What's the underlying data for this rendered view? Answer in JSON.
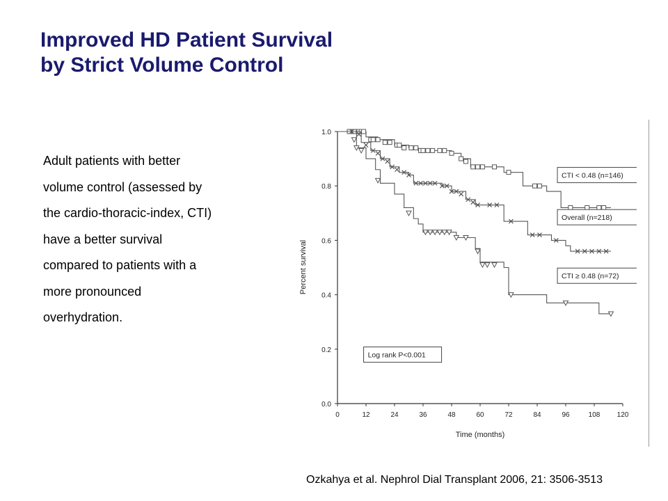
{
  "title": {
    "line1": "Improved HD Patient Survival",
    "line2": "by Strict Volume Control"
  },
  "body_lines": [
    "Adult patients with better",
    "volume control (assessed by",
    "the cardio-thoracic-index, CTI)",
    "have a better survival",
    "compared to patients with a",
    "more pronounced",
    "overhydration."
  ],
  "citation": "Ozkahya et al. Nephrol Dial Transplant 2006, 21: 3506-3513",
  "chart_data": {
    "type": "line",
    "xlabel": "Time (months)",
    "ylabel": "Percent survival",
    "xlim": [
      0,
      120
    ],
    "ylim": [
      0,
      1.0
    ],
    "xticks": [
      0,
      12,
      24,
      36,
      48,
      60,
      72,
      84,
      96,
      108,
      120
    ],
    "yticks": [
      "0.0",
      "0.2",
      "0.4",
      "0.6",
      "0.8",
      "1.0"
    ],
    "grid": false,
    "annotation": "Log rank P<0.001",
    "series": [
      {
        "name": "CTI < 0.48 (n=146)",
        "marker": "square",
        "points": [
          [
            0,
            1.0
          ],
          [
            10,
            1.0
          ],
          [
            12,
            0.98
          ],
          [
            17,
            0.97
          ],
          [
            24,
            0.95
          ],
          [
            30,
            0.94
          ],
          [
            34,
            0.93
          ],
          [
            42,
            0.93
          ],
          [
            48,
            0.92
          ],
          [
            52,
            0.9
          ],
          [
            56,
            0.87
          ],
          [
            66,
            0.87
          ],
          [
            70,
            0.85
          ],
          [
            76,
            0.85
          ],
          [
            78,
            0.8
          ],
          [
            86,
            0.8
          ],
          [
            88,
            0.78
          ],
          [
            92,
            0.78
          ],
          [
            94,
            0.72
          ],
          [
            115,
            0.72
          ]
        ],
        "marks": [
          [
            5,
            1.0
          ],
          [
            7,
            1.0
          ],
          [
            9,
            1.0
          ],
          [
            10,
            1.0
          ],
          [
            11,
            1.0
          ],
          [
            14,
            0.97
          ],
          [
            15,
            0.97
          ],
          [
            17,
            0.97
          ],
          [
            20,
            0.96
          ],
          [
            22,
            0.96
          ],
          [
            25,
            0.95
          ],
          [
            26,
            0.95
          ],
          [
            28,
            0.94
          ],
          [
            31,
            0.94
          ],
          [
            33,
            0.94
          ],
          [
            35,
            0.93
          ],
          [
            36,
            0.93
          ],
          [
            38,
            0.93
          ],
          [
            40,
            0.93
          ],
          [
            43,
            0.93
          ],
          [
            45,
            0.93
          ],
          [
            48,
            0.92
          ],
          [
            52,
            0.9
          ],
          [
            54,
            0.89
          ],
          [
            57,
            0.87
          ],
          [
            59,
            0.87
          ],
          [
            61,
            0.87
          ],
          [
            66,
            0.87
          ],
          [
            72,
            0.85
          ],
          [
            83,
            0.8
          ],
          [
            85,
            0.8
          ],
          [
            98,
            0.72
          ],
          [
            105,
            0.72
          ],
          [
            110,
            0.72
          ],
          [
            112,
            0.72
          ]
        ]
      },
      {
        "name": "Overall (n=218)",
        "marker": "x",
        "points": [
          [
            0,
            1.0
          ],
          [
            8,
            1.0
          ],
          [
            10,
            0.96
          ],
          [
            14,
            0.93
          ],
          [
            18,
            0.9
          ],
          [
            22,
            0.87
          ],
          [
            26,
            0.85
          ],
          [
            30,
            0.84
          ],
          [
            32,
            0.81
          ],
          [
            40,
            0.81
          ],
          [
            44,
            0.8
          ],
          [
            48,
            0.78
          ],
          [
            54,
            0.75
          ],
          [
            58,
            0.73
          ],
          [
            66,
            0.73
          ],
          [
            70,
            0.67
          ],
          [
            78,
            0.67
          ],
          [
            80,
            0.62
          ],
          [
            88,
            0.62
          ],
          [
            90,
            0.6
          ],
          [
            96,
            0.58
          ],
          [
            98,
            0.56
          ],
          [
            115,
            0.56
          ]
        ],
        "marks": [
          [
            6,
            1.0
          ],
          [
            9,
            0.99
          ],
          [
            12,
            0.95
          ],
          [
            15,
            0.93
          ],
          [
            17,
            0.92
          ],
          [
            19,
            0.9
          ],
          [
            21,
            0.89
          ],
          [
            23,
            0.87
          ],
          [
            25,
            0.86
          ],
          [
            28,
            0.85
          ],
          [
            30,
            0.84
          ],
          [
            33,
            0.81
          ],
          [
            35,
            0.81
          ],
          [
            37,
            0.81
          ],
          [
            39,
            0.81
          ],
          [
            41,
            0.81
          ],
          [
            44,
            0.8
          ],
          [
            46,
            0.8
          ],
          [
            48,
            0.78
          ],
          [
            50,
            0.78
          ],
          [
            52,
            0.77
          ],
          [
            55,
            0.75
          ],
          [
            57,
            0.74
          ],
          [
            59,
            0.73
          ],
          [
            64,
            0.73
          ],
          [
            67,
            0.73
          ],
          [
            73,
            0.67
          ],
          [
            82,
            0.62
          ],
          [
            85,
            0.62
          ],
          [
            92,
            0.6
          ],
          [
            101,
            0.56
          ],
          [
            104,
            0.56
          ],
          [
            107,
            0.56
          ],
          [
            110,
            0.56
          ],
          [
            113,
            0.56
          ]
        ]
      },
      {
        "name": "CTI ≥ 0.48 (n=72)",
        "marker": "triangle-down",
        "points": [
          [
            0,
            1.0
          ],
          [
            6,
            1.0
          ],
          [
            8,
            0.94
          ],
          [
            12,
            0.9
          ],
          [
            16,
            0.86
          ],
          [
            18,
            0.81
          ],
          [
            22,
            0.81
          ],
          [
            24,
            0.77
          ],
          [
            28,
            0.72
          ],
          [
            32,
            0.68
          ],
          [
            34,
            0.66
          ],
          [
            36,
            0.63
          ],
          [
            48,
            0.63
          ],
          [
            50,
            0.61
          ],
          [
            56,
            0.61
          ],
          [
            58,
            0.57
          ],
          [
            60,
            0.52
          ],
          [
            66,
            0.52
          ],
          [
            70,
            0.5
          ],
          [
            72,
            0.4
          ],
          [
            84,
            0.4
          ],
          [
            88,
            0.37
          ],
          [
            108,
            0.37
          ],
          [
            110,
            0.33
          ],
          [
            115,
            0.33
          ]
        ],
        "marks": [
          [
            7,
            0.97
          ],
          [
            8,
            0.94
          ],
          [
            10,
            0.93
          ],
          [
            17,
            0.82
          ],
          [
            30,
            0.7
          ],
          [
            37,
            0.63
          ],
          [
            39,
            0.63
          ],
          [
            41,
            0.63
          ],
          [
            43,
            0.63
          ],
          [
            45,
            0.63
          ],
          [
            47,
            0.63
          ],
          [
            50,
            0.61
          ],
          [
            54,
            0.61
          ],
          [
            59,
            0.56
          ],
          [
            61,
            0.51
          ],
          [
            63,
            0.51
          ],
          [
            66,
            0.51
          ],
          [
            73,
            0.4
          ],
          [
            96,
            0.37
          ],
          [
            115,
            0.33
          ]
        ]
      }
    ]
  }
}
